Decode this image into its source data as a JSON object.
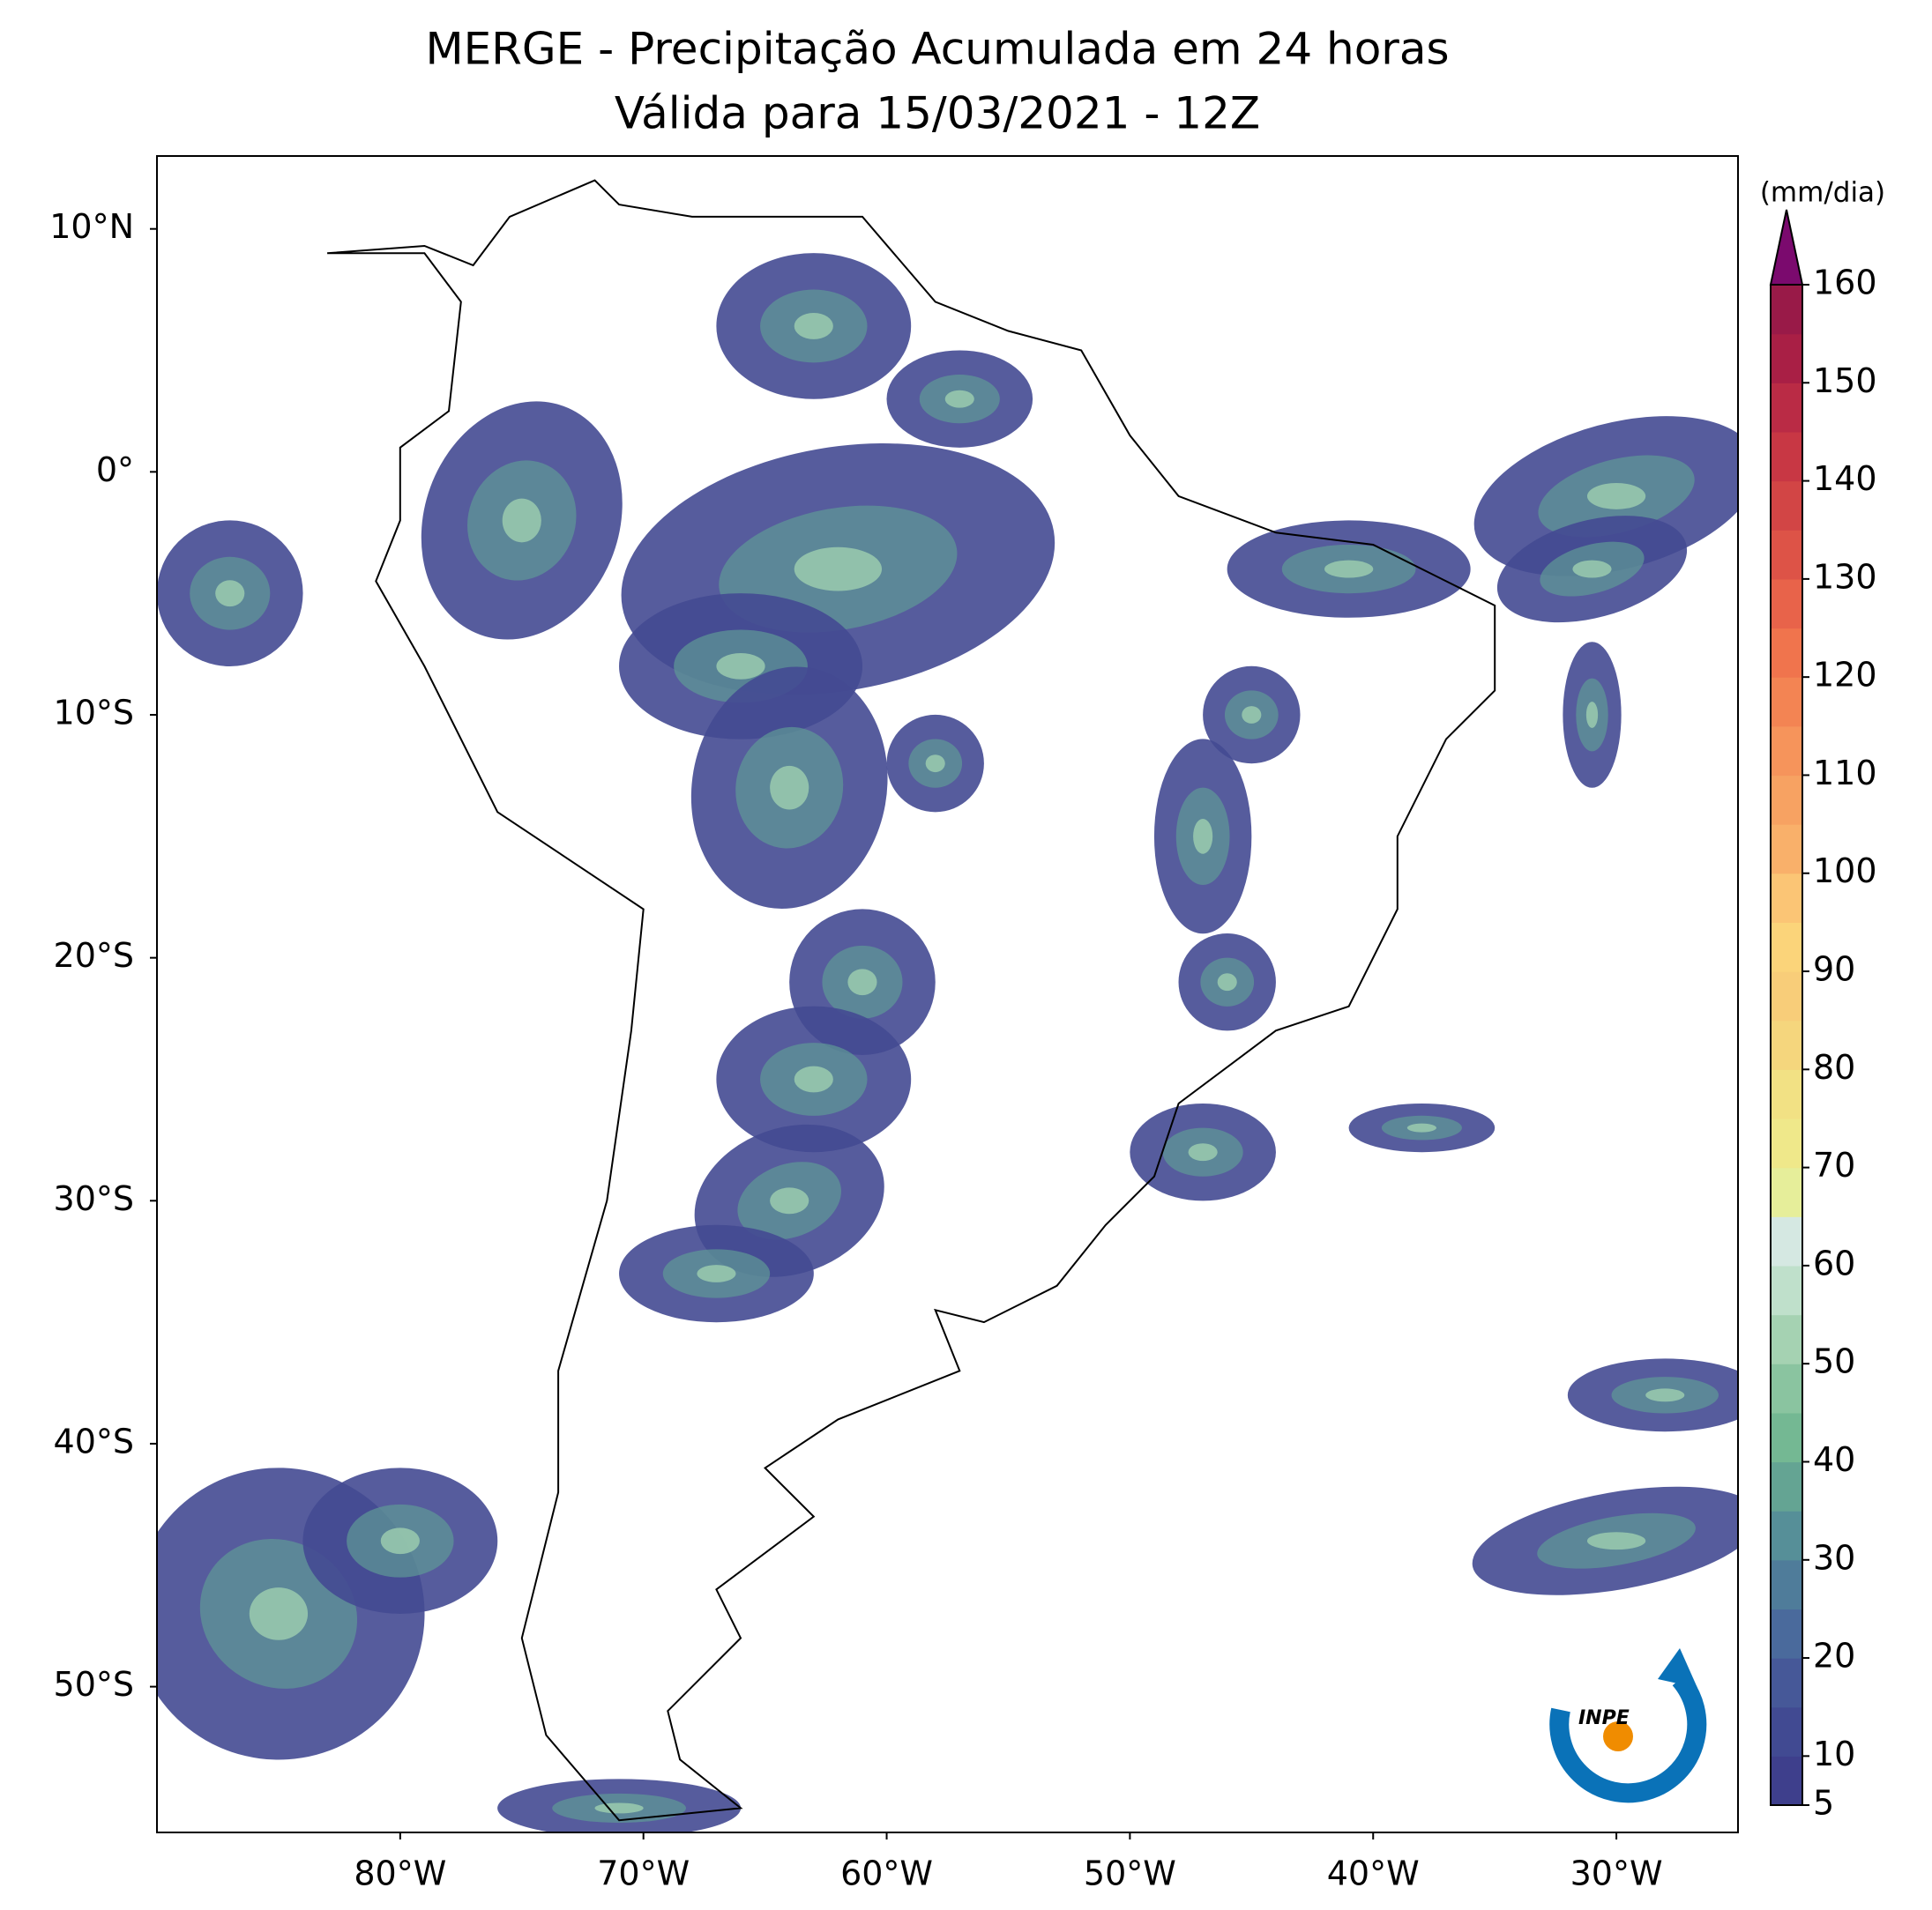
{
  "map": {
    "title": "MERGE - Precipitação Acumulada em 24 horas",
    "subtitle": "Válida para 15/03/2021 - 12Z",
    "xlim": [
      -90,
      -25
    ],
    "ylim": [
      -56,
      13
    ],
    "xticks": [
      {
        "value": -80,
        "label": "80°W"
      },
      {
        "value": -70,
        "label": "70°W"
      },
      {
        "value": -60,
        "label": "60°W"
      },
      {
        "value": -50,
        "label": "50°W"
      },
      {
        "value": -40,
        "label": "40°W"
      },
      {
        "value": -30,
        "label": "30°W"
      }
    ],
    "yticks": [
      {
        "value": 10,
        "label": "10°N"
      },
      {
        "value": 0,
        "label": "0°"
      },
      {
        "value": -10,
        "label": "10°S"
      },
      {
        "value": -20,
        "label": "20°S"
      },
      {
        "value": -30,
        "label": "30°S"
      },
      {
        "value": -40,
        "label": "40°S"
      },
      {
        "value": -50,
        "label": "50°S"
      }
    ],
    "colorbar": {
      "label": "(mm/dia)",
      "lim": [
        5,
        160
      ],
      "ticks": [
        5,
        10,
        20,
        30,
        40,
        50,
        60,
        70,
        80,
        90,
        100,
        110,
        120,
        130,
        140,
        150,
        160
      ],
      "colors": [
        "#3e3f8c",
        "#414a92",
        "#465898",
        "#4a6a9c",
        "#4f7c9a",
        "#568f98",
        "#64a493",
        "#74b893",
        "#8ac4a0",
        "#a5d2b2",
        "#bfe0cb",
        "#d5e8e2",
        "#e6ee9a",
        "#efe88a",
        "#f2e184",
        "#f5d67d",
        "#f8cd79",
        "#fbd47a",
        "#fbc575",
        "#f9b06a",
        "#f7a262",
        "#f6945b",
        "#f38453",
        "#f0744d",
        "#e8634a",
        "#dd5347",
        "#d24545",
        "#c83744",
        "#ba2b45",
        "#a91f45",
        "#991a48"
      ],
      "extend_color": "#7b0a6e"
    },
    "logo": {
      "text": "INPE"
    }
  }
}
